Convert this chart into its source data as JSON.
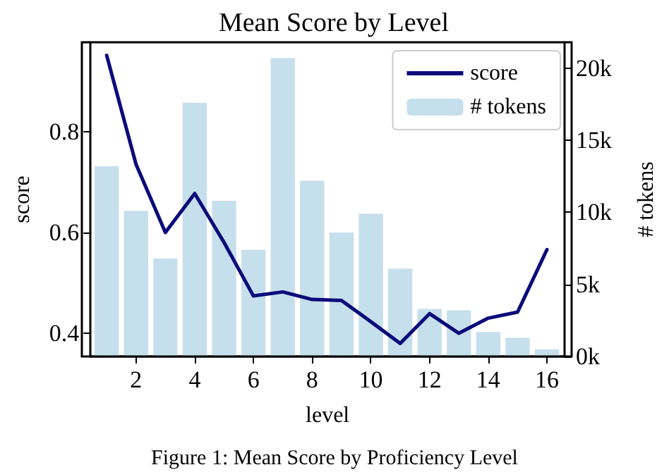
{
  "chart_data": {
    "type": "line",
    "title": "Mean Score by Level",
    "xlabel": "level",
    "ylabel": "score",
    "y2label": "# tokens",
    "annotations": [
      "Figure 1: Mean Score by Proficiency Level"
    ],
    "x": [
      1,
      2,
      3,
      4,
      5,
      6,
      7,
      8,
      9,
      10,
      11,
      12,
      13,
      14,
      15,
      16
    ],
    "series": [
      {
        "name": "score",
        "color": "#0b0b7a",
        "values": [
          0.951,
          0.735,
          0.6,
          0.677,
          0.58,
          0.474,
          0.482,
          0.467,
          0.465,
          0.423,
          0.38,
          0.439,
          0.4,
          0.43,
          0.442,
          0.566
        ]
      },
      {
        "name": "# tokens",
        "type": "bar",
        "axis": "y2",
        "color": "#c6dfec",
        "values": [
          13200,
          10100,
          6800,
          17600,
          10800,
          7400,
          20700,
          12200,
          8600,
          9900,
          6100,
          3300,
          3200,
          1700,
          1300,
          500
        ]
      }
    ],
    "xlim": [
      0.45,
      16.6
    ],
    "xticks": [
      2,
      4,
      6,
      8,
      10,
      12,
      14,
      16
    ],
    "ylim": [
      0.354,
      0.977
    ],
    "yticks": [
      0.4,
      0.6,
      0.8
    ],
    "y2lim": [
      0,
      21800
    ],
    "y2ticks": [
      {
        "value": 0,
        "label": "0k"
      },
      {
        "value": 5000,
        "label": "5k"
      },
      {
        "value": 10000,
        "label": "10k"
      },
      {
        "value": 15000,
        "label": "15k"
      },
      {
        "value": 20000,
        "label": "20k"
      }
    ],
    "legend": "top right",
    "grid": false,
    "marker": "none",
    "line_style": "solid"
  }
}
